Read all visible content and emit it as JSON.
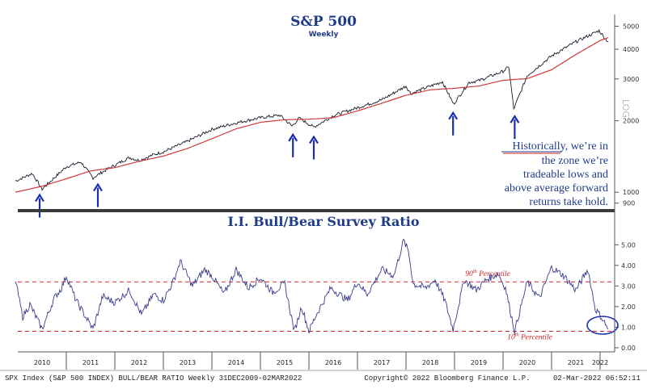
{
  "colors": {
    "price": "#1a1a2e",
    "ma": "#d03a3a",
    "ratio": "#3a3d8f",
    "arrow": "#1a2fb0",
    "threshold": "#d02020",
    "title": "#1f3c88",
    "circle": "#1a2fb0"
  },
  "chart_data": [
    {
      "type": "line",
      "title": "S&P 500",
      "subtitle": "Weekly",
      "axis_label": "LOG",
      "y_scale": "log",
      "ylim": [
        850,
        5600
      ],
      "xlim": [
        2010.0,
        2022.3
      ],
      "yticks": [
        "900",
        "1000",
        "2000",
        "3000",
        "4000",
        "5000"
      ],
      "series": [
        {
          "role": "price",
          "x": [
            2009.95,
            2010.1,
            2010.3,
            2010.5,
            2010.75,
            2011.0,
            2011.3,
            2011.55,
            2011.75,
            2012.0,
            2012.3,
            2012.5,
            2012.8,
            2013.0,
            2013.5,
            2014.0,
            2014.5,
            2015.0,
            2015.4,
            2015.65,
            2015.8,
            2016.1,
            2016.5,
            2017.0,
            2017.5,
            2018.0,
            2018.1,
            2018.3,
            2018.75,
            2018.98,
            2019.3,
            2019.5,
            2020.0,
            2020.12,
            2020.22,
            2020.5,
            2021.0,
            2021.5,
            2021.98,
            2022.1,
            2022.17
          ],
          "y": [
            1115,
            1150,
            1200,
            1030,
            1150,
            1280,
            1340,
            1150,
            1220,
            1300,
            1400,
            1360,
            1440,
            1480,
            1640,
            1840,
            1960,
            2060,
            2110,
            1900,
            2050,
            1880,
            2100,
            2270,
            2450,
            2800,
            2600,
            2700,
            2920,
            2350,
            2900,
            2950,
            3230,
            3370,
            2240,
            3100,
            3750,
            4300,
            4790,
            4450,
            4300
          ]
        },
        {
          "role": "moving-average",
          "x": [
            2009.95,
            2010.5,
            2011.0,
            2011.5,
            2012.0,
            2012.5,
            2013.0,
            2013.5,
            2014.0,
            2014.5,
            2015.0,
            2015.5,
            2016.0,
            2016.5,
            2017.0,
            2017.5,
            2018.0,
            2018.5,
            2019.0,
            2019.5,
            2020.0,
            2020.5,
            2021.0,
            2021.5,
            2022.0,
            2022.17
          ],
          "y": [
            1000,
            1060,
            1140,
            1230,
            1270,
            1350,
            1420,
            1530,
            1680,
            1850,
            1970,
            2020,
            2030,
            2060,
            2200,
            2370,
            2560,
            2700,
            2740,
            2800,
            2960,
            3010,
            3280,
            3800,
            4350,
            4480
          ]
        }
      ],
      "arrows_at": [
        2010.45,
        2011.65,
        2015.67,
        2016.1,
        2018.97,
        2020.24
      ],
      "annotation": {
        "underlined": "Historically,",
        "lines": [
          "Historically, we’re in",
          "the zone we’re",
          "tradeable lows and",
          "above average forward",
          "returns take hold."
        ]
      }
    },
    {
      "type": "line",
      "title": "I.I. Bull/Bear Survey Ratio",
      "ylim": [
        -0.2,
        5.6
      ],
      "xlim": [
        2010.0,
        2022.3
      ],
      "yticks": [
        "0.00",
        "1.00",
        "2.00",
        "3.00",
        "4.00",
        "5.00"
      ],
      "series": [
        {
          "role": "ratio",
          "x": [
            2009.95,
            2010.1,
            2010.25,
            2010.5,
            2010.75,
            2010.9,
            2011.0,
            2011.2,
            2011.55,
            2011.75,
            2012.0,
            2012.3,
            2012.55,
            2012.8,
            2013.0,
            2013.2,
            2013.35,
            2013.6,
            2013.85,
            2014.0,
            2014.25,
            2014.5,
            2014.75,
            2015.0,
            2015.25,
            2015.5,
            2015.7,
            2015.85,
            2016.0,
            2016.15,
            2016.45,
            2016.8,
            2017.0,
            2017.2,
            2017.5,
            2017.75,
            2017.95,
            2018.05,
            2018.15,
            2018.4,
            2018.6,
            2018.8,
            2018.97,
            2019.2,
            2019.45,
            2019.65,
            2019.9,
            2020.05,
            2020.24,
            2020.5,
            2020.75,
            2021.0,
            2021.25,
            2021.5,
            2021.75,
            2021.9,
            2022.05,
            2022.17
          ],
          "y": [
            3.3,
            1.5,
            2.1,
            0.9,
            2.4,
            2.9,
            3.5,
            2.3,
            0.9,
            2.5,
            2.2,
            2.8,
            1.6,
            2.6,
            2.3,
            3.2,
            4.2,
            3.0,
            3.8,
            3.5,
            2.6,
            3.8,
            2.9,
            3.4,
            2.7,
            3.1,
            0.8,
            2.0,
            0.8,
            1.6,
            2.9,
            2.3,
            3.2,
            2.6,
            3.8,
            3.5,
            5.2,
            4.7,
            3.1,
            2.9,
            3.3,
            2.3,
            0.9,
            3.3,
            2.8,
            3.3,
            3.6,
            2.9,
            0.8,
            3.2,
            2.4,
            3.9,
            3.5,
            2.8,
            3.8,
            1.9,
            1.4,
            0.9
          ]
        }
      ],
      "thresholds": [
        {
          "value": 3.2,
          "label_main": "90",
          "label_sup": "th",
          "label_rest": " Percentile"
        },
        {
          "value": 0.8,
          "label_main": "10",
          "label_sup": "th",
          "label_rest": " Percentile"
        }
      ]
    }
  ],
  "x_axis": {
    "labels": [
      "2010",
      "2011",
      "2012",
      "2013",
      "2014",
      "2015",
      "2016",
      "2017",
      "2018",
      "2019",
      "2020",
      "2021",
      "2022"
    ]
  },
  "footer": {
    "left": "SPX Index (S&P 500 INDEX) BULL/BEAR RATIO  Weekly 31DEC2009-02MAR2022",
    "center": "Copyright© 2022 Bloomberg Finance L.P.",
    "right": "02-Mar-2022 06:52:11"
  }
}
